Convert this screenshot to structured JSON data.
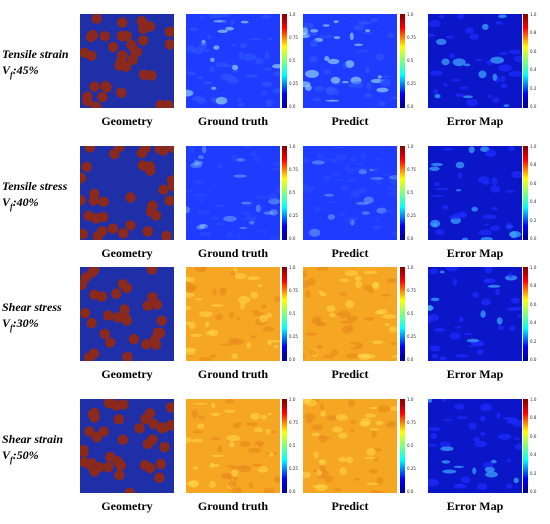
{
  "columns": [
    "Geometry",
    "Ground truth",
    "Predict",
    "Error Map"
  ],
  "rows": [
    {
      "title": "Tensile strain",
      "vf_symbol": "V",
      "vf_sub": "f",
      "vf_value": ":45%",
      "field": "low-spotty",
      "ticks_truth": [
        "1.0",
        "0.75",
        "0.5",
        "0.25",
        "0.0"
      ],
      "ticks_pred": [
        "1.0",
        "0.75",
        "0.5",
        "0.25",
        "0.0"
      ],
      "ticks_err": [
        "1.0",
        "0.8",
        "0.6",
        "0.4",
        "0.2",
        "0.0"
      ]
    },
    {
      "title": "Tensile stress",
      "vf_symbol": "V",
      "vf_sub": "f",
      "vf_value": ":40%",
      "field": "low-smooth",
      "ticks_truth": [
        "1.0",
        "0.75",
        "0.5",
        "0.25",
        "0.0"
      ],
      "ticks_pred": [
        "1.0",
        "0.75",
        "0.5",
        "0.25",
        "0.0"
      ],
      "ticks_err": [
        "1.0",
        "0.8",
        "0.6",
        "0.4",
        "0.2",
        "0.0"
      ]
    },
    {
      "title": "Shear stress",
      "vf_symbol": "V",
      "vf_sub": "f",
      "vf_value": ":30%",
      "field": "high",
      "ticks_truth": [
        "1.0",
        "0.75",
        "0.5",
        "0.25",
        "0.0"
      ],
      "ticks_pred": [
        "1.0",
        "0.75",
        "0.5",
        "0.25",
        "0.0"
      ],
      "ticks_err": [
        "1.0",
        "0.8",
        "0.6",
        "0.4",
        "0.2",
        "0.0"
      ]
    },
    {
      "title": "Shear strain",
      "vf_symbol": "V",
      "vf_sub": "f",
      "vf_value": ":50%",
      "field": "high-spotty",
      "ticks_truth": [
        "1.0",
        "0.75",
        "0.5",
        "0.25",
        "0.0"
      ],
      "ticks_pred": [
        "1.0",
        "0.75",
        "0.5",
        "0.25",
        "0.0"
      ],
      "ticks_err": [
        "1.0",
        "0.8",
        "0.6",
        "0.4",
        "0.2",
        "0.0"
      ]
    }
  ],
  "colors": {
    "geometry_matrix": "#1e2fa8",
    "geometry_fiber": "#8b2a1c",
    "low_field": "#1f3bff",
    "high_field": "#f5a623",
    "error_field": "#0b16c8"
  }
}
